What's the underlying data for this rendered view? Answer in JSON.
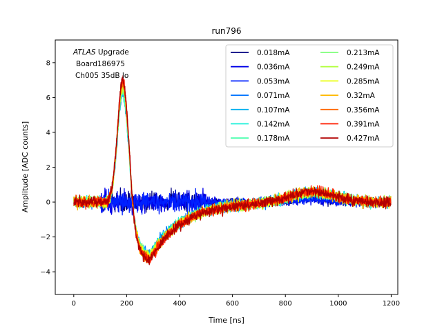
{
  "chart_data": {
    "type": "line",
    "title": "run796",
    "xlabel": "Time [ns]",
    "ylabel": "Amplitude [ADC counts]",
    "xlim": [
      -70,
      1225
    ],
    "ylim": [
      -5.3,
      9.3
    ],
    "xticks": [
      0,
      200,
      400,
      600,
      800,
      1000,
      1200
    ],
    "yticks": [
      -4,
      -2,
      0,
      2,
      4,
      6,
      8
    ],
    "grid": false,
    "legend_placement": "top-right",
    "legend_columns": 2,
    "annotation": {
      "lines": [
        {
          "italic": "ATLAS",
          "rest": " Upgrade"
        },
        {
          "italic": "",
          "rest": "Board186975"
        },
        {
          "italic": "",
          "rest": "Ch005 35dB lo"
        }
      ]
    },
    "series": [
      {
        "name": "0.018mA",
        "color": "#00007f",
        "shape": "noise"
      },
      {
        "name": "0.036mA",
        "color": "#0000e8",
        "shape": "noise"
      },
      {
        "name": "0.053mA",
        "color": "#0020ff",
        "shape": "noise"
      },
      {
        "name": "0.071mA",
        "color": "#0074ff",
        "shape": "pulse"
      },
      {
        "name": "0.107mA",
        "color": "#00b0ee",
        "shape": "pulse"
      },
      {
        "name": "0.142mA",
        "color": "#1cf0da",
        "shape": "pulse"
      },
      {
        "name": "0.178mA",
        "color": "#49ffad",
        "shape": "pulse"
      },
      {
        "name": "0.213mA",
        "color": "#7dff7a",
        "shape": "pulse"
      },
      {
        "name": "0.249mA",
        "color": "#b4ff43",
        "shape": "pulse"
      },
      {
        "name": "0.285mA",
        "color": "#eaff0c",
        "shape": "pulse"
      },
      {
        "name": "0.32mA",
        "color": "#ffb900",
        "shape": "pulse"
      },
      {
        "name": "0.356mA",
        "color": "#ff6800",
        "shape": "pulse"
      },
      {
        "name": "0.391mA",
        "color": "#ff1d00",
        "shape": "pulse"
      },
      {
        "name": "0.427mA",
        "color": "#b20000",
        "shape": "pulse"
      }
    ],
    "pulse_shape": {
      "baseline": 0.0,
      "peak_time_ns": 185,
      "peak_value": 7.0,
      "undershoot_time_ns": 290,
      "undershoot_value": -3.3,
      "late_bump_time_ns": 900,
      "late_bump_value": 0.6
    }
  }
}
